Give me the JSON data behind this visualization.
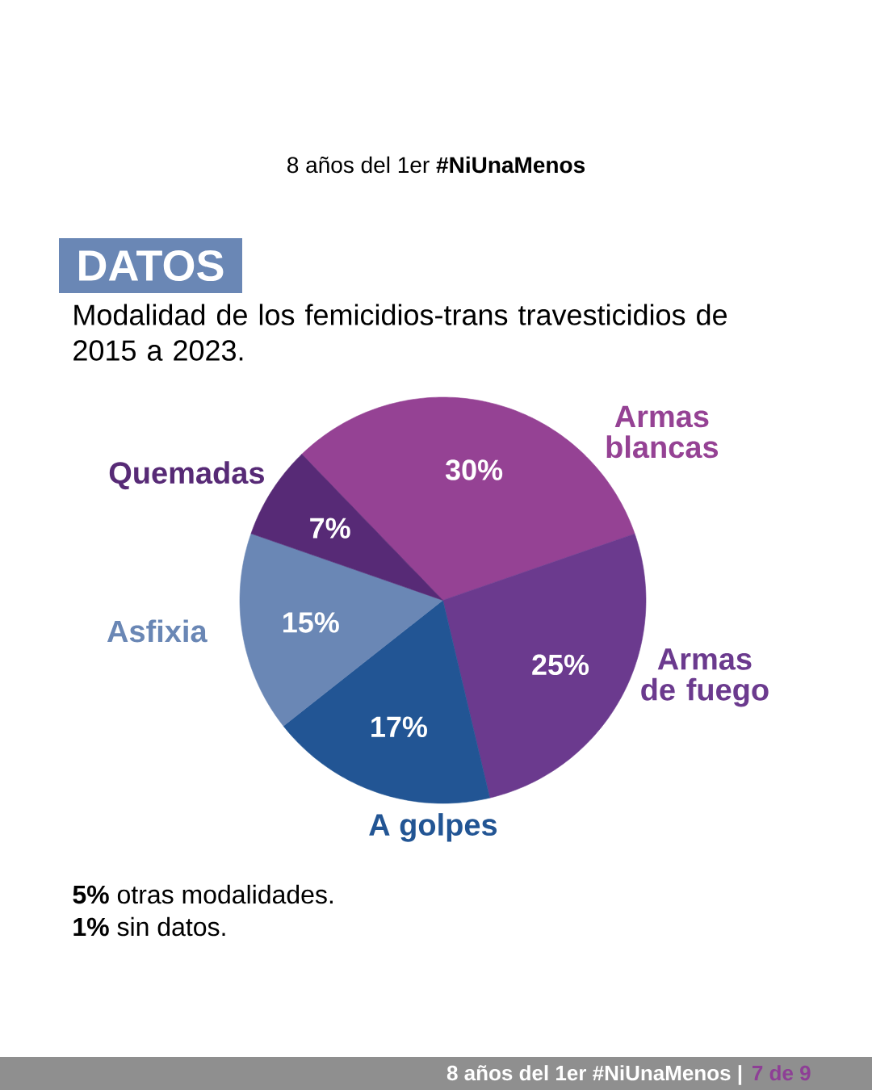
{
  "chart_data": {
    "type": "pie",
    "title": "8 años del 1er **#NiUnaMenos**",
    "subtitle": "Modalidad de los femicidios-trans travesticidios de 2015 a 2023.",
    "categories": [
      "Armas blancas",
      "Armas de fuego",
      "A golpes",
      "Asfixia",
      "Quemadas"
    ],
    "values": [
      30,
      25,
      17,
      15,
      7
    ],
    "colors": [
      "#954294",
      "#6b3a8e",
      "#225594",
      "#6a87b5",
      "#572a76"
    ],
    "value_labels": [
      "30%",
      "25%",
      "17%",
      "15%",
      "7%"
    ],
    "annotations": [
      "DATOS",
      "**5%** otras modalidades.",
      "**1%** sin datos.",
      "8 años del 1er #NiUnaMenos |",
      "7 de 9"
    ]
  }
}
